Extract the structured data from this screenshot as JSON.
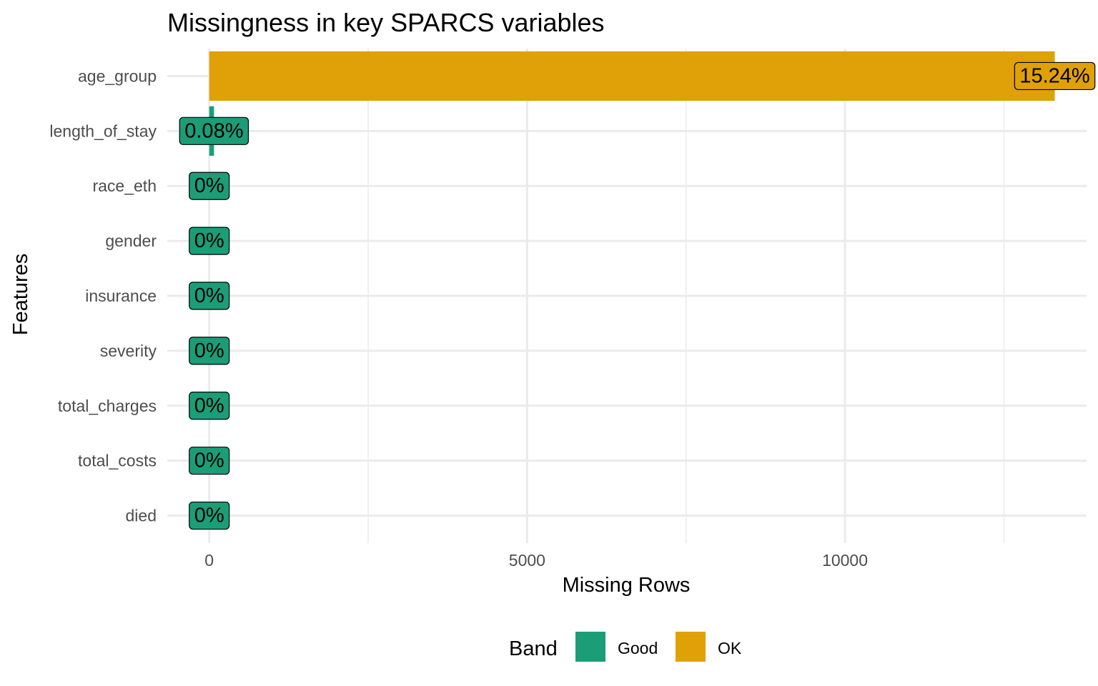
{
  "chart_data": {
    "type": "bar",
    "orientation": "horizontal",
    "title": "Missingness in key SPARCS variables",
    "xlabel": "Missing Rows",
    "ylabel": "Features",
    "xlim": [
      -660,
      13800
    ],
    "x_ticks": [
      0,
      5000,
      10000
    ],
    "x_tick_labels": [
      "0",
      "5000",
      "10000"
    ],
    "grid": true,
    "categories": [
      "died",
      "total_costs",
      "total_charges",
      "severity",
      "insurance",
      "gender",
      "race_eth",
      "length_of_stay",
      "age_group"
    ],
    "values": [
      0,
      0,
      0,
      0,
      0,
      0,
      0,
      75,
      13300
    ],
    "labels": [
      "0%",
      "0%",
      "0%",
      "0%",
      "0%",
      "0%",
      "0%",
      "0.08%",
      "15.24%"
    ],
    "band": [
      "Good",
      "Good",
      "Good",
      "Good",
      "Good",
      "Good",
      "Good",
      "Good",
      "OK"
    ],
    "legend": {
      "title": "Band",
      "placement": "bottom",
      "entries": [
        {
          "name": "Good",
          "color": "#1b9e77"
        },
        {
          "name": "OK",
          "color": "#e0a008"
        }
      ]
    }
  }
}
